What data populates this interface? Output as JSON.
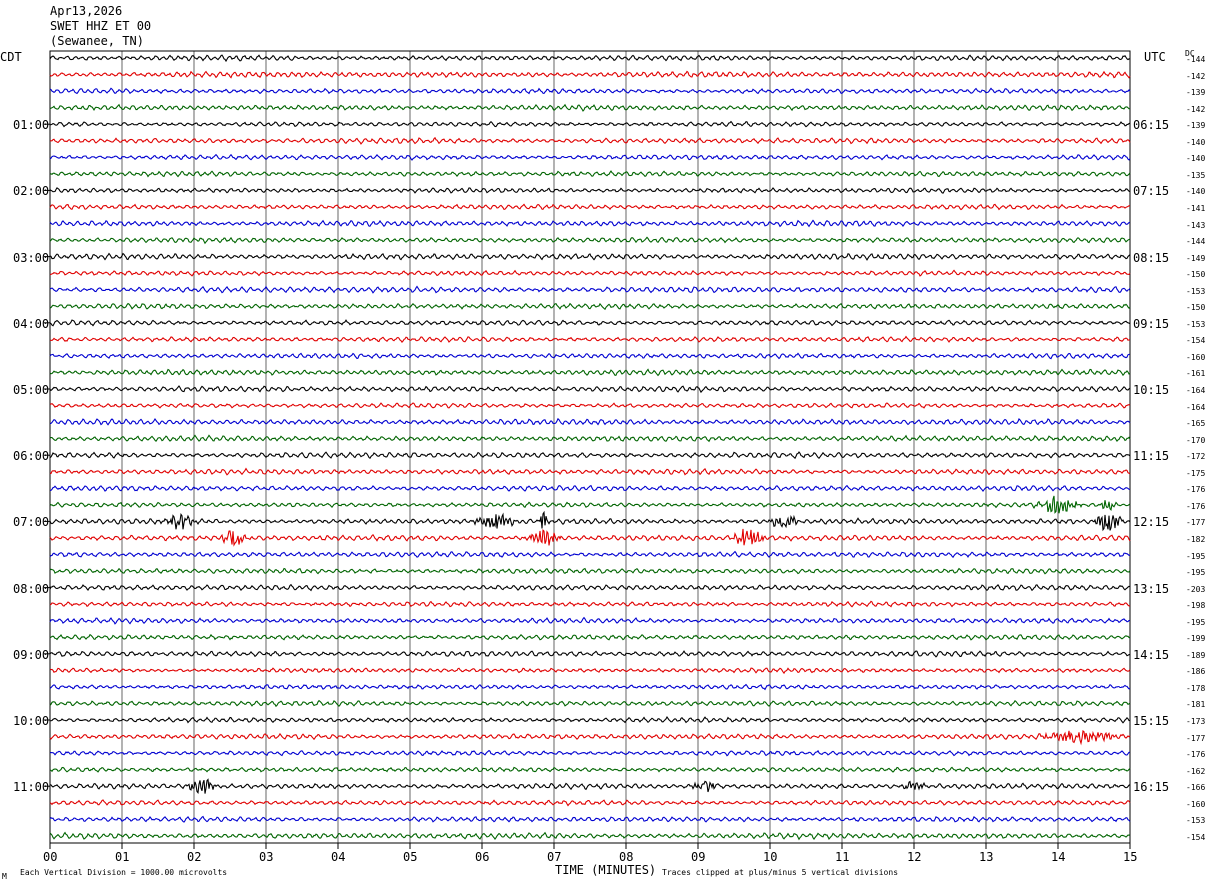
{
  "header": {
    "date": "Apr13,2026",
    "station": "SWET HHZ ET 00",
    "location": "(Sewanee, TN)"
  },
  "labels": {
    "left_tz": "CDT",
    "right_tz": "UTC",
    "dc": "DC",
    "xlabel": "TIME (MINUTES)",
    "footer_left": "Each Vertical Division = 1000.00 microvolts",
    "footer_right": "Traces clipped at plus/minus 5 vertical divisions",
    "corner_mark": "M"
  },
  "chart_data": {
    "type": "line",
    "title": "SWET HHZ ET 00 (Sewanee, TN) Apr13,2026",
    "xlabel": "TIME (MINUTES)",
    "ylabel": "",
    "xlim": [
      0,
      15
    ],
    "x_ticks": [
      "00",
      "01",
      "02",
      "03",
      "04",
      "05",
      "06",
      "07",
      "08",
      "09",
      "10",
      "11",
      "12",
      "13",
      "14",
      "15"
    ],
    "grid": true,
    "trace_count": 48,
    "trace_colors": [
      "#000000",
      "#e00000",
      "#0000d0",
      "#006400"
    ],
    "left_hour_labels": [
      {
        "row": 4,
        "text": "01:00"
      },
      {
        "row": 8,
        "text": "02:00"
      },
      {
        "row": 12,
        "text": "03:00"
      },
      {
        "row": 16,
        "text": "04:00"
      },
      {
        "row": 20,
        "text": "05:00"
      },
      {
        "row": 24,
        "text": "06:00"
      },
      {
        "row": 28,
        "text": "07:00"
      },
      {
        "row": 32,
        "text": "08:00"
      },
      {
        "row": 36,
        "text": "09:00"
      },
      {
        "row": 40,
        "text": "10:00"
      },
      {
        "row": 44,
        "text": "11:00"
      }
    ],
    "right_hour_labels": [
      {
        "row": 4,
        "text": "06:15"
      },
      {
        "row": 8,
        "text": "07:15"
      },
      {
        "row": 12,
        "text": "08:15"
      },
      {
        "row": 16,
        "text": "09:15"
      },
      {
        "row": 20,
        "text": "10:15"
      },
      {
        "row": 24,
        "text": "11:15"
      },
      {
        "row": 28,
        "text": "12:15"
      },
      {
        "row": 32,
        "text": "13:15"
      },
      {
        "row": 36,
        "text": "14:15"
      },
      {
        "row": 40,
        "text": "15:15"
      },
      {
        "row": 44,
        "text": "16:15"
      }
    ],
    "dc_offsets": [
      "-144",
      "-142",
      "-139",
      "-142",
      "-139",
      "-140",
      "-140",
      "-135",
      "-140",
      "-141",
      "-143",
      "-144",
      "-149",
      "-150",
      "-153",
      "-150",
      "-153",
      "-154",
      "-160",
      "-161",
      "-164",
      "-164",
      "-165",
      "-170",
      "-172",
      "-175",
      "-176",
      "-176",
      "-177",
      "-182",
      "-195",
      "-195",
      "-203",
      "-198",
      "-195",
      "-199",
      "-189",
      "-186",
      "-178",
      "-181",
      "-173",
      "-177",
      "-176",
      "-162",
      "-166",
      "-160",
      "-153",
      "-154"
    ],
    "events": [
      {
        "row": 27,
        "minute": 14.0,
        "width": 0.5,
        "amp": 2.6
      },
      {
        "row": 27,
        "minute": 14.7,
        "width": 0.2,
        "amp": 1.6
      },
      {
        "row": 28,
        "minute": 1.8,
        "width": 0.35,
        "amp": 2.2
      },
      {
        "row": 28,
        "minute": 6.2,
        "width": 0.5,
        "amp": 2.2
      },
      {
        "row": 28,
        "minute": 6.85,
        "width": 0.12,
        "amp": 3.0
      },
      {
        "row": 28,
        "minute": 10.2,
        "width": 0.35,
        "amp": 2.0
      },
      {
        "row": 28,
        "minute": 14.7,
        "width": 0.35,
        "amp": 2.4
      },
      {
        "row": 29,
        "minute": 2.55,
        "width": 0.3,
        "amp": 2.4
      },
      {
        "row": 29,
        "minute": 6.85,
        "width": 0.4,
        "amp": 2.4
      },
      {
        "row": 29,
        "minute": 9.7,
        "width": 0.4,
        "amp": 2.6
      },
      {
        "row": 41,
        "minute": 14.3,
        "width": 1.0,
        "amp": 1.6
      },
      {
        "row": 44,
        "minute": 2.1,
        "width": 0.4,
        "amp": 2.0
      },
      {
        "row": 44,
        "minute": 9.1,
        "width": 0.35,
        "amp": 1.4
      },
      {
        "row": 44,
        "minute": 12.0,
        "width": 0.3,
        "amp": 1.3
      }
    ]
  }
}
